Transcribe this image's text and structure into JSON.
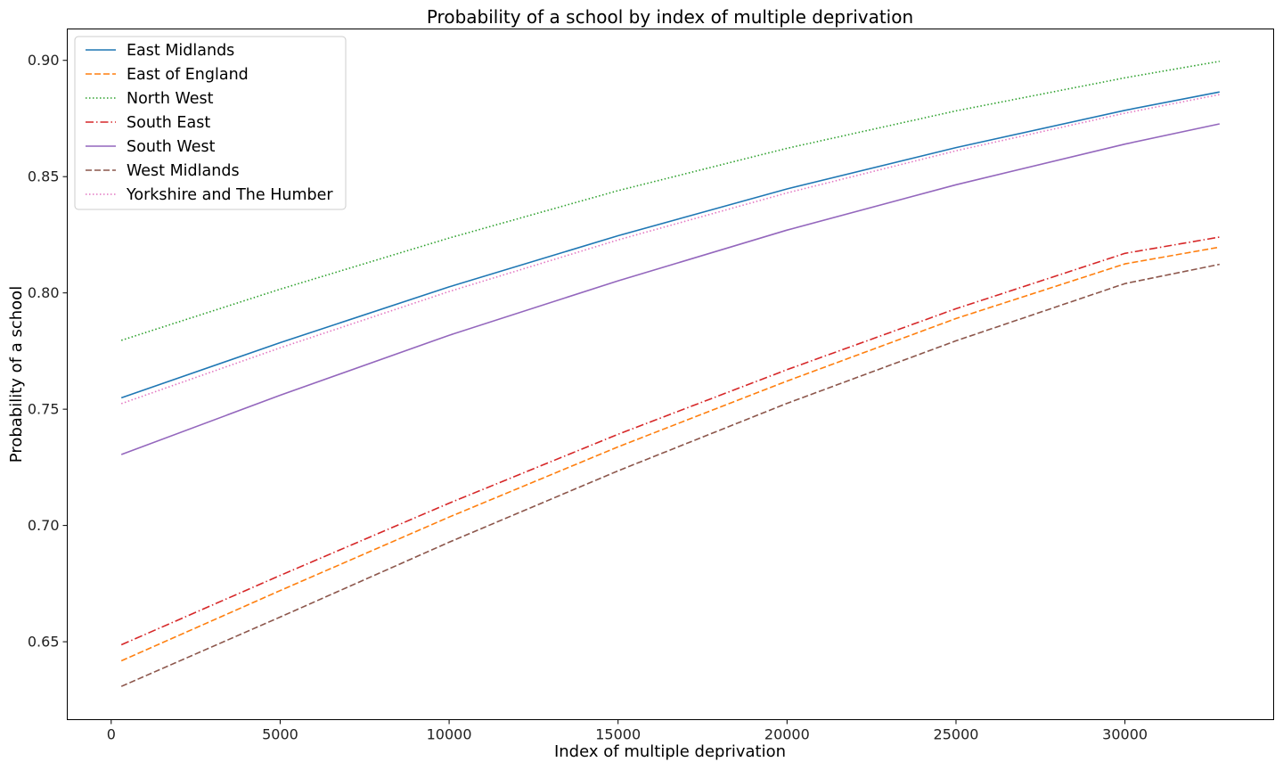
{
  "chart_data": {
    "type": "line",
    "title": "Probability of a school by index of multiple deprivation",
    "xlabel": "Index of multiple deprivation",
    "ylabel": "Probability of a school",
    "xlim": [
      -1300,
      34400
    ],
    "ylim": [
      0.6165,
      0.9135
    ],
    "xticks": [
      0,
      5000,
      10000,
      15000,
      20000,
      25000,
      30000
    ],
    "yticks": [
      0.65,
      0.7,
      0.75,
      0.8,
      0.85,
      0.9
    ],
    "ytick_labels": [
      "0.65",
      "0.70",
      "0.75",
      "0.80",
      "0.85",
      "0.90"
    ],
    "grid": false,
    "legend_position": "upper-left",
    "x": [
      300,
      5000,
      10000,
      15000,
      20000,
      25000,
      30000,
      32800
    ],
    "series": [
      {
        "name": "East Midlands",
        "color": "#1f77b4",
        "style": "solid",
        "values": [
          0.7549,
          0.7786,
          0.8026,
          0.8246,
          0.8447,
          0.8625,
          0.8785,
          0.8864
        ]
      },
      {
        "name": "East of England",
        "color": "#ff7f0e",
        "style": "dashed",
        "values": [
          0.6418,
          0.672,
          0.7036,
          0.7338,
          0.7621,
          0.789,
          0.8125,
          0.8197
        ]
      },
      {
        "name": "North West",
        "color": "#2ca02c",
        "style": "dotted",
        "values": [
          0.7796,
          0.8016,
          0.8236,
          0.844,
          0.8622,
          0.8783,
          0.8925,
          0.8996
        ]
      },
      {
        "name": "South East",
        "color": "#d62728",
        "style": "dashdot",
        "values": [
          0.6487,
          0.6785,
          0.7096,
          0.7392,
          0.767,
          0.7932,
          0.817,
          0.824
        ]
      },
      {
        "name": "South West",
        "color": "#9467bd",
        "style": "solid",
        "values": [
          0.7305,
          0.756,
          0.7818,
          0.8052,
          0.827,
          0.8465,
          0.864,
          0.8727
        ]
      },
      {
        "name": "West Midlands",
        "color": "#8c564b",
        "style": "dashed",
        "values": [
          0.6308,
          0.6606,
          0.6928,
          0.7235,
          0.7525,
          0.7794,
          0.804,
          0.8123
        ]
      },
      {
        "name": "Yorkshire and The Humber",
        "color": "#e377c2",
        "style": "dotted",
        "values": [
          0.7524,
          0.7764,
          0.8006,
          0.8228,
          0.843,
          0.8611,
          0.8773,
          0.8853
        ]
      }
    ]
  }
}
